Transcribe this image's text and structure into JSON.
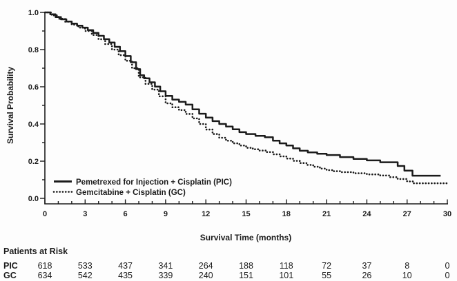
{
  "figure": {
    "background": "#fdfdfd",
    "ink": "#1b1b1b"
  },
  "chart_data": {
    "type": "line",
    "subtype": "kaplan-meier-step",
    "title": "",
    "xlabel": "Survival Time (months)",
    "ylabel": "Survival Probability",
    "xlim": [
      0,
      30
    ],
    "ylim": [
      0.0,
      1.0
    ],
    "x_major_tick_values": [
      0,
      3,
      6,
      9,
      12,
      15,
      18,
      21,
      24,
      27,
      30
    ],
    "x_tick_labels": [
      "0",
      "3",
      "6",
      "9",
      "12",
      "15",
      "18",
      "21",
      "24",
      "27",
      "30"
    ],
    "x_minor_step": 1,
    "y_major_tick_values": [
      0.0,
      0.2,
      0.4,
      0.6,
      0.8,
      1.0
    ],
    "y_tick_labels": [
      "0.0",
      "0.2",
      "0.4",
      "0.6",
      "0.8",
      "1.0"
    ],
    "y_minor_step": 0.1,
    "grid": false,
    "legend_position": "lower-left-inside",
    "series": [
      {
        "name": "Pemetrexed for Injection + Cisplatin (PIC)",
        "style": "solid",
        "color": "#1b1b1b",
        "points": [
          [
            0,
            1.0
          ],
          [
            0.4,
            0.99
          ],
          [
            0.8,
            0.975
          ],
          [
            1.2,
            0.963
          ],
          [
            1.6,
            0.951
          ],
          [
            2.0,
            0.94
          ],
          [
            2.4,
            0.929
          ],
          [
            2.8,
            0.918
          ],
          [
            3.2,
            0.905
          ],
          [
            3.6,
            0.89
          ],
          [
            4.0,
            0.874
          ],
          [
            4.4,
            0.856
          ],
          [
            4.8,
            0.838
          ],
          [
            5.2,
            0.815
          ],
          [
            5.6,
            0.792
          ],
          [
            6.0,
            0.765
          ],
          [
            6.4,
            0.732
          ],
          [
            6.8,
            0.695
          ],
          [
            7.1,
            0.662
          ],
          [
            7.4,
            0.645
          ],
          [
            7.8,
            0.624
          ],
          [
            8.2,
            0.601
          ],
          [
            8.6,
            0.576
          ],
          [
            9.0,
            0.551
          ],
          [
            9.5,
            0.531
          ],
          [
            10.0,
            0.519
          ],
          [
            10.5,
            0.504
          ],
          [
            11.0,
            0.479
          ],
          [
            11.5,
            0.455
          ],
          [
            12.0,
            0.434
          ],
          [
            12.5,
            0.415
          ],
          [
            13.0,
            0.4
          ],
          [
            13.5,
            0.386
          ],
          [
            14.0,
            0.371
          ],
          [
            14.5,
            0.356
          ],
          [
            15.0,
            0.346
          ],
          [
            15.7,
            0.336
          ],
          [
            16.4,
            0.329
          ],
          [
            17.0,
            0.31
          ],
          [
            17.5,
            0.296
          ],
          [
            18.0,
            0.284
          ],
          [
            18.5,
            0.269
          ],
          [
            19.0,
            0.256
          ],
          [
            19.6,
            0.247
          ],
          [
            20.3,
            0.24
          ],
          [
            21.0,
            0.233
          ],
          [
            22.0,
            0.222
          ],
          [
            23.0,
            0.212
          ],
          [
            24.0,
            0.204
          ],
          [
            25.0,
            0.194
          ],
          [
            26.3,
            0.174
          ],
          [
            26.8,
            0.149
          ],
          [
            27.4,
            0.122
          ],
          [
            29.5,
            0.122
          ]
        ]
      },
      {
        "name": "Gemcitabine + Cisplatin (GC)",
        "style": "dotted",
        "color": "#1b1b1b",
        "points": [
          [
            0,
            1.0
          ],
          [
            0.5,
            0.984
          ],
          [
            1.0,
            0.966
          ],
          [
            1.5,
            0.95
          ],
          [
            2.0,
            0.934
          ],
          [
            2.5,
            0.918
          ],
          [
            3.0,
            0.9
          ],
          [
            3.5,
            0.879
          ],
          [
            4.0,
            0.856
          ],
          [
            4.5,
            0.83
          ],
          [
            5.0,
            0.8
          ],
          [
            5.5,
            0.77
          ],
          [
            6.0,
            0.74
          ],
          [
            6.5,
            0.7
          ],
          [
            7.0,
            0.651
          ],
          [
            7.5,
            0.616
          ],
          [
            8.0,
            0.585
          ],
          [
            8.5,
            0.549
          ],
          [
            9.0,
            0.511
          ],
          [
            9.5,
            0.49
          ],
          [
            10.0,
            0.475
          ],
          [
            10.5,
            0.454
          ],
          [
            11.0,
            0.43
          ],
          [
            11.5,
            0.4
          ],
          [
            12.0,
            0.37
          ],
          [
            12.5,
            0.346
          ],
          [
            13.0,
            0.326
          ],
          [
            13.5,
            0.31
          ],
          [
            14.0,
            0.296
          ],
          [
            14.5,
            0.284
          ],
          [
            15.0,
            0.272
          ],
          [
            15.5,
            0.264
          ],
          [
            16.0,
            0.257
          ],
          [
            16.5,
            0.249
          ],
          [
            17.0,
            0.237
          ],
          [
            17.5,
            0.226
          ],
          [
            18.0,
            0.214
          ],
          [
            18.5,
            0.202
          ],
          [
            19.0,
            0.19
          ],
          [
            19.5,
            0.18
          ],
          [
            20.0,
            0.17
          ],
          [
            20.5,
            0.16
          ],
          [
            21.0,
            0.152
          ],
          [
            21.5,
            0.146
          ],
          [
            22.0,
            0.141
          ],
          [
            23.0,
            0.135
          ],
          [
            24.0,
            0.129
          ],
          [
            25.0,
            0.123
          ],
          [
            25.7,
            0.114
          ],
          [
            26.3,
            0.104
          ],
          [
            27.0,
            0.091
          ],
          [
            27.5,
            0.081
          ],
          [
            30.0,
            0.081
          ]
        ]
      }
    ],
    "at_risk": {
      "title": "Patients at Risk",
      "time_points": [
        0,
        3,
        6,
        9,
        12,
        15,
        18,
        21,
        24,
        27,
        30
      ],
      "rows": [
        {
          "label": "PIC",
          "counts": [
            618,
            533,
            437,
            341,
            264,
            188,
            118,
            72,
            37,
            8,
            0
          ]
        },
        {
          "label": "GC",
          "counts": [
            634,
            542,
            435,
            339,
            240,
            151,
            101,
            55,
            26,
            10,
            0
          ]
        }
      ]
    }
  }
}
